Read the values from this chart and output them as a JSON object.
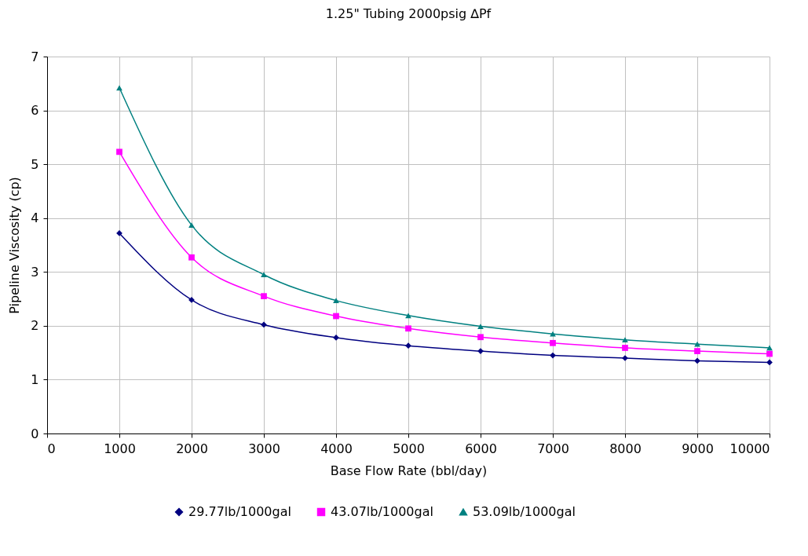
{
  "chart_data": {
    "type": "line",
    "title": "1.25\" Tubing 2000psig ∆Pf",
    "xlabel": "Base Flow Rate (bbl/day)",
    "ylabel": "Pipeline Viscosity (cp)",
    "x": [
      1000,
      2000,
      3000,
      4000,
      5000,
      6000,
      7000,
      8000,
      9000,
      10000
    ],
    "series": [
      {
        "name": "29.77lb/1000gal",
        "color": "#000080",
        "marker": "diamond",
        "values": [
          3.72,
          2.48,
          2.02,
          1.78,
          1.63,
          1.53,
          1.45,
          1.4,
          1.35,
          1.32
        ]
      },
      {
        "name": "43.07lb/1000gal",
        "color": "#ff00ff",
        "marker": "square",
        "values": [
          5.23,
          3.27,
          2.55,
          2.18,
          1.95,
          1.79,
          1.68,
          1.59,
          1.53,
          1.48
        ]
      },
      {
        "name": "53.09lb/1000gal",
        "color": "#008080",
        "marker": "triangle",
        "values": [
          6.42,
          3.87,
          2.95,
          2.47,
          2.19,
          1.99,
          1.85,
          1.74,
          1.66,
          1.59
        ]
      }
    ],
    "xlim": [
      0,
      10000
    ],
    "xticks": [
      0,
      1000,
      2000,
      3000,
      4000,
      5000,
      6000,
      7000,
      8000,
      9000,
      10000
    ],
    "ylim": [
      0,
      7
    ],
    "yticks": [
      0,
      1,
      2,
      3,
      4,
      5,
      6,
      7
    ],
    "grid": true,
    "legend": "bottom",
    "line_style": "solid"
  }
}
